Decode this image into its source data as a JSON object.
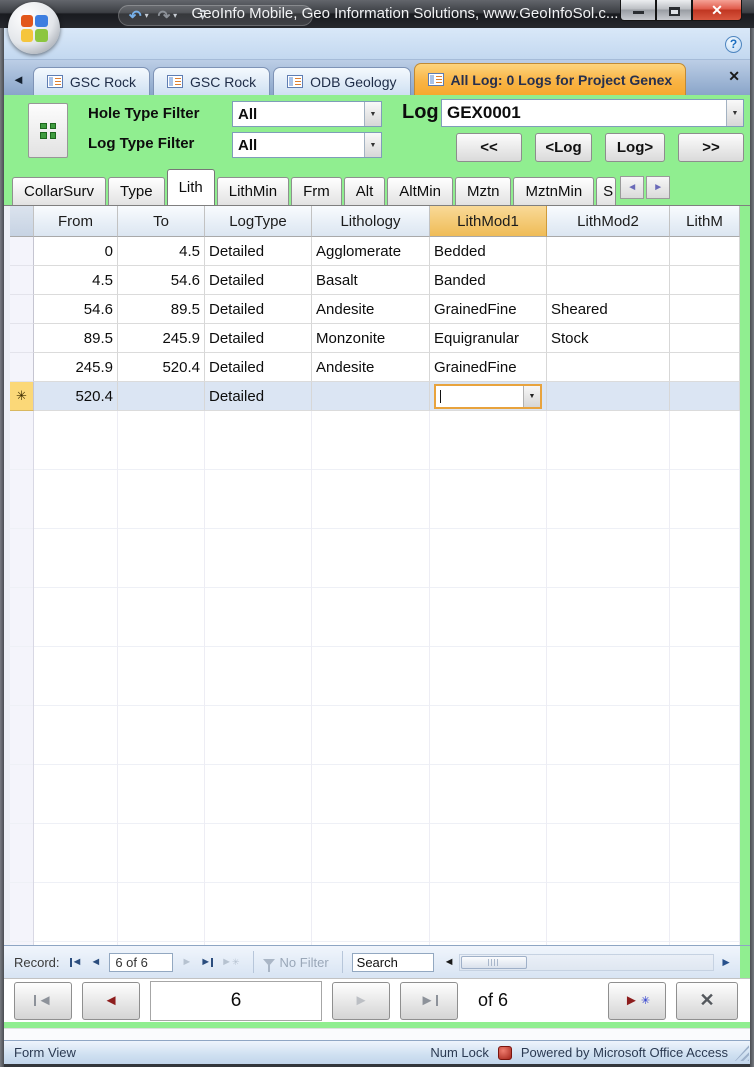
{
  "icons": {
    "undo": "↶",
    "redo": "↷",
    "caret": "▾",
    "customize": "▾",
    "help": "?",
    "back": "◄",
    "forward": "►",
    "close": "✕",
    "asterisk": "✳",
    "dropdown": "▼"
  },
  "titlebar": {
    "title": "GeoInfo Mobile, Geo Information Solutions, www.GeoInfoSol.c..."
  },
  "doc_tabs": {
    "tabs": [
      {
        "label": "GSC Rock"
      },
      {
        "label": "GSC Rock"
      },
      {
        "label": "ODB Geology"
      },
      {
        "label": "All Log:  0 Logs for Project Genex"
      }
    ]
  },
  "filters": {
    "hole_label": "Hole Type Filter",
    "hole_value": "All",
    "log_type_label": "Log Type Filter",
    "log_type_value": "All",
    "log_label": "Log",
    "log_value": "GEX0001",
    "btn_first": "<<",
    "btn_prev": "<Log",
    "btn_next": "Log>",
    "btn_last": ">>"
  },
  "form_tabs": {
    "tabs": [
      {
        "label": "CollarSurv"
      },
      {
        "label": "Type"
      },
      {
        "label": "Lith"
      },
      {
        "label": "LithMin"
      },
      {
        "label": "Frm"
      },
      {
        "label": "Alt"
      },
      {
        "label": "AltMin"
      },
      {
        "label": "Mztn"
      },
      {
        "label": "MztnMin"
      },
      {
        "label": "S"
      }
    ]
  },
  "sheet": {
    "headers": [
      "From",
      "To",
      "LogType",
      "Lithology",
      "LithMod1",
      "LithMod2",
      "LithM"
    ],
    "selected_column": "LithMod1",
    "rows": [
      [
        "0",
        "4.5",
        "Detailed",
        "Agglomerate",
        "Bedded",
        "",
        ""
      ],
      [
        "4.5",
        "54.6",
        "Detailed",
        "Basalt",
        "Banded",
        "",
        ""
      ],
      [
        "54.6",
        "89.5",
        "Detailed",
        "Andesite",
        "GrainedFine",
        "Sheared",
        ""
      ],
      [
        "89.5",
        "245.9",
        "Detailed",
        "Monzonite",
        "Equigranular",
        "Stock",
        ""
      ],
      [
        "245.9",
        "520.4",
        "Detailed",
        "Andesite",
        "GrainedFine",
        "",
        ""
      ]
    ],
    "new_row": {
      "marker": "✳",
      "from": "520.4",
      "logtype": "Detailed"
    }
  },
  "record_bar": {
    "label": "Record:",
    "position": "6 of 6",
    "no_filter": "No Filter",
    "search_text": "Search"
  },
  "big_nav": {
    "current": "6",
    "of_label": "of 6"
  },
  "status_bar": {
    "view": "Form View",
    "num_lock": "Num Lock",
    "powered": "Powered by Microsoft Office Access"
  },
  "colors": {
    "form_green": "#90EE90",
    "active_tab_orange": "#F6A92F",
    "selected_header_orange": "#EFBC57",
    "close_button_red": "#C03622",
    "new_row_blue": "#DBE5F3"
  }
}
